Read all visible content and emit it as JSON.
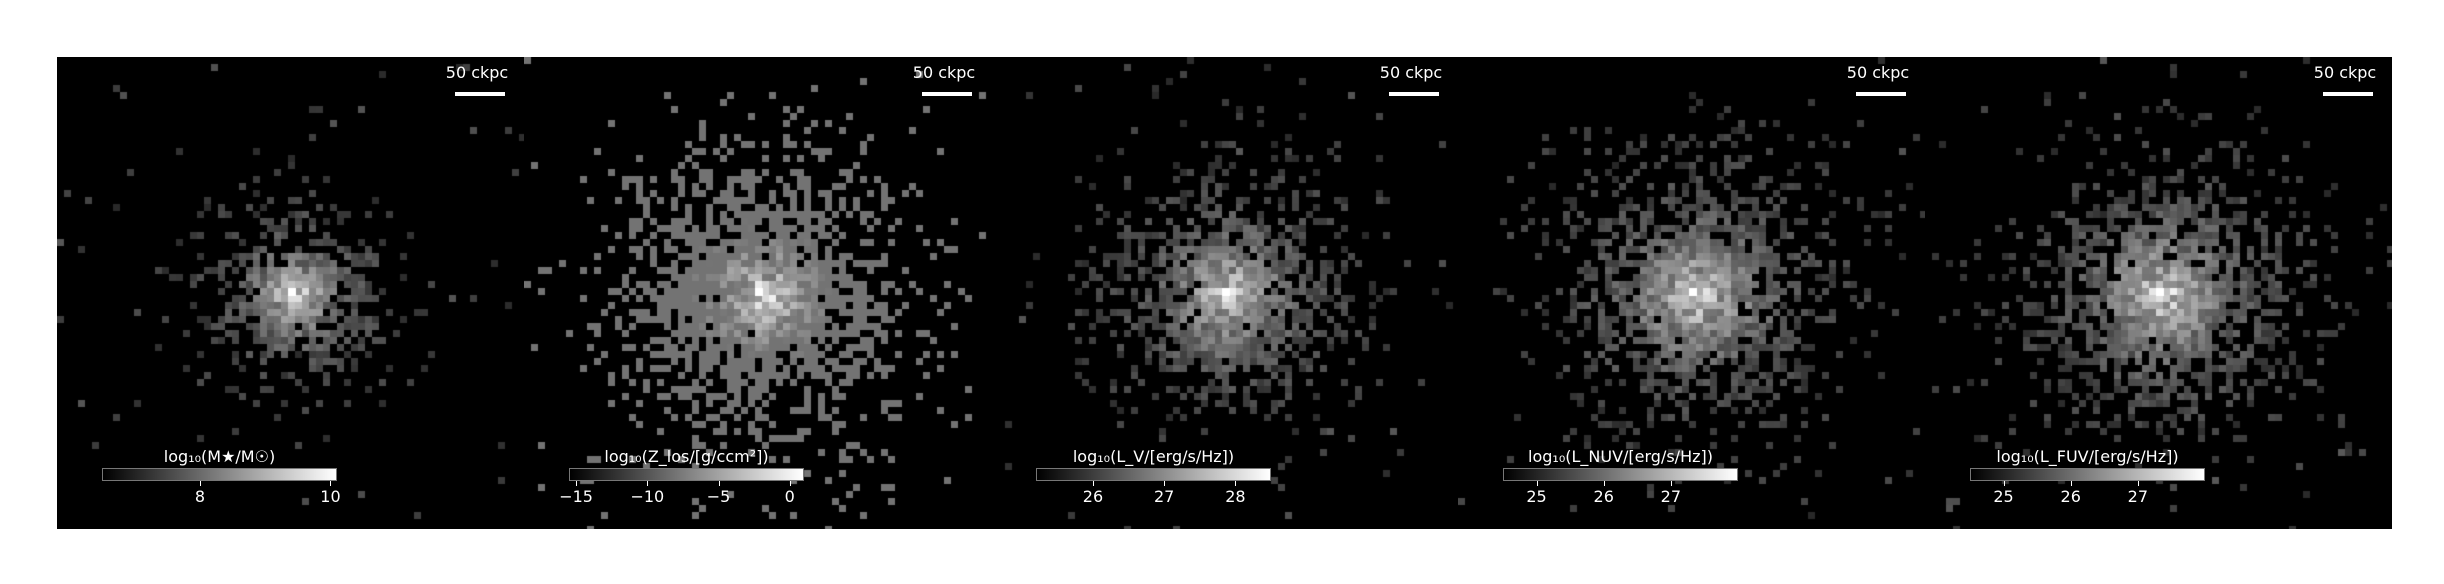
{
  "scale_bar_label": "50 ckpc",
  "panels": [
    {
      "name": "stellar-mass-map",
      "colorbar_label": "log₁₀(M★/M☉)",
      "colorbar_range": [
        6.5,
        10.1
      ],
      "ticks": [
        {
          "value": 8,
          "label": "8"
        },
        {
          "value": 10,
          "label": "10"
        }
      ],
      "seed": 11,
      "spread": 0.65,
      "background_fill": 0.0,
      "sparse": false
    },
    {
      "name": "metallicity-map",
      "colorbar_label": "log₁₀(Z_los/[g/ccm²])",
      "colorbar_range": [
        -15.5,
        1
      ],
      "ticks": [
        {
          "value": -15,
          "label": "−15"
        },
        {
          "value": -10,
          "label": "−10"
        },
        {
          "value": -5,
          "label": "−5"
        },
        {
          "value": 0,
          "label": "0"
        }
      ],
      "seed": 23,
      "spread": 1.0,
      "background_fill": 0.45,
      "sparse": true
    },
    {
      "name": "v-band-luminosity-map",
      "colorbar_label": "log₁₀(L_V/[erg/s/Hz])",
      "colorbar_range": [
        25.2,
        28.5
      ],
      "ticks": [
        {
          "value": 26,
          "label": "26"
        },
        {
          "value": 27,
          "label": "27"
        },
        {
          "value": 28,
          "label": "28"
        }
      ],
      "seed": 37,
      "spread": 0.85,
      "background_fill": 0.1,
      "sparse": false
    },
    {
      "name": "nuv-luminosity-map",
      "colorbar_label": "log₁₀(L_NUV/[erg/s/Hz])",
      "colorbar_range": [
        24.5,
        28
      ],
      "ticks": [
        {
          "value": 25,
          "label": "25"
        },
        {
          "value": 26,
          "label": "26"
        },
        {
          "value": 27,
          "label": "27"
        }
      ],
      "seed": 51,
      "spread": 0.95,
      "background_fill": 0.15,
      "sparse": false
    },
    {
      "name": "fuv-luminosity-map",
      "colorbar_label": "log₁₀(L_FUV/[erg/s/Hz])",
      "colorbar_range": [
        24.5,
        28
      ],
      "ticks": [
        {
          "value": 25,
          "label": "25"
        },
        {
          "value": 26,
          "label": "26"
        },
        {
          "value": 27,
          "label": "27"
        }
      ],
      "seed": 67,
      "spread": 0.95,
      "background_fill": 0.15,
      "sparse": false
    }
  ]
}
